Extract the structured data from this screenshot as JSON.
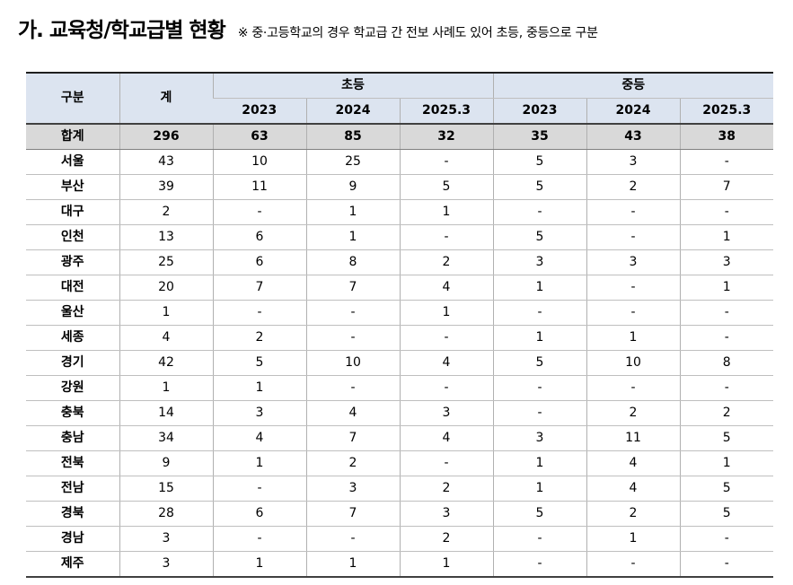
{
  "heading": {
    "title": "가. 교육청/학교급별 현황",
    "note": "※ 중·고등학교의 경우 학교급 간 전보 사례도 있어 초등, 중등으로 구분"
  },
  "table": {
    "header": {
      "division": "구분",
      "total": "계",
      "elementary": "초등",
      "secondary": "중등",
      "years": [
        "2023",
        "2024",
        "2025.3",
        "2023",
        "2024",
        "2025.3"
      ]
    },
    "total_row": {
      "label": "합계",
      "values": [
        "296",
        "63",
        "85",
        "32",
        "35",
        "43",
        "38"
      ]
    },
    "rows": [
      {
        "region": "서울",
        "values": [
          "43",
          "10",
          "25",
          "-",
          "5",
          "3",
          "-"
        ]
      },
      {
        "region": "부산",
        "values": [
          "39",
          "11",
          "9",
          "5",
          "5",
          "2",
          "7"
        ]
      },
      {
        "region": "대구",
        "values": [
          "2",
          "-",
          "1",
          "1",
          "-",
          "-",
          "-"
        ]
      },
      {
        "region": "인천",
        "values": [
          "13",
          "6",
          "1",
          "-",
          "5",
          "-",
          "1"
        ]
      },
      {
        "region": "광주",
        "values": [
          "25",
          "6",
          "8",
          "2",
          "3",
          "3",
          "3"
        ]
      },
      {
        "region": "대전",
        "values": [
          "20",
          "7",
          "7",
          "4",
          "1",
          "-",
          "1"
        ]
      },
      {
        "region": "울산",
        "values": [
          "1",
          "-",
          "-",
          "1",
          "-",
          "-",
          "-"
        ]
      },
      {
        "region": "세종",
        "values": [
          "4",
          "2",
          "-",
          "-",
          "1",
          "1",
          "-"
        ]
      },
      {
        "region": "경기",
        "values": [
          "42",
          "5",
          "10",
          "4",
          "5",
          "10",
          "8"
        ]
      },
      {
        "region": "강원",
        "values": [
          "1",
          "1",
          "-",
          "-",
          "-",
          "-",
          "-"
        ]
      },
      {
        "region": "충북",
        "values": [
          "14",
          "3",
          "4",
          "3",
          "-",
          "2",
          "2"
        ]
      },
      {
        "region": "충남",
        "values": [
          "34",
          "4",
          "7",
          "4",
          "3",
          "11",
          "5"
        ]
      },
      {
        "region": "전북",
        "values": [
          "9",
          "1",
          "2",
          "-",
          "1",
          "4",
          "1"
        ]
      },
      {
        "region": "전남",
        "values": [
          "15",
          "-",
          "3",
          "2",
          "1",
          "4",
          "5"
        ]
      },
      {
        "region": "경북",
        "values": [
          "28",
          "6",
          "7",
          "3",
          "5",
          "2",
          "5"
        ]
      },
      {
        "region": "경남",
        "values": [
          "3",
          "-",
          "-",
          "2",
          "-",
          "1",
          "-"
        ]
      },
      {
        "region": "제주",
        "values": [
          "3",
          "1",
          "1",
          "1",
          "-",
          "-",
          "-"
        ]
      }
    ]
  }
}
